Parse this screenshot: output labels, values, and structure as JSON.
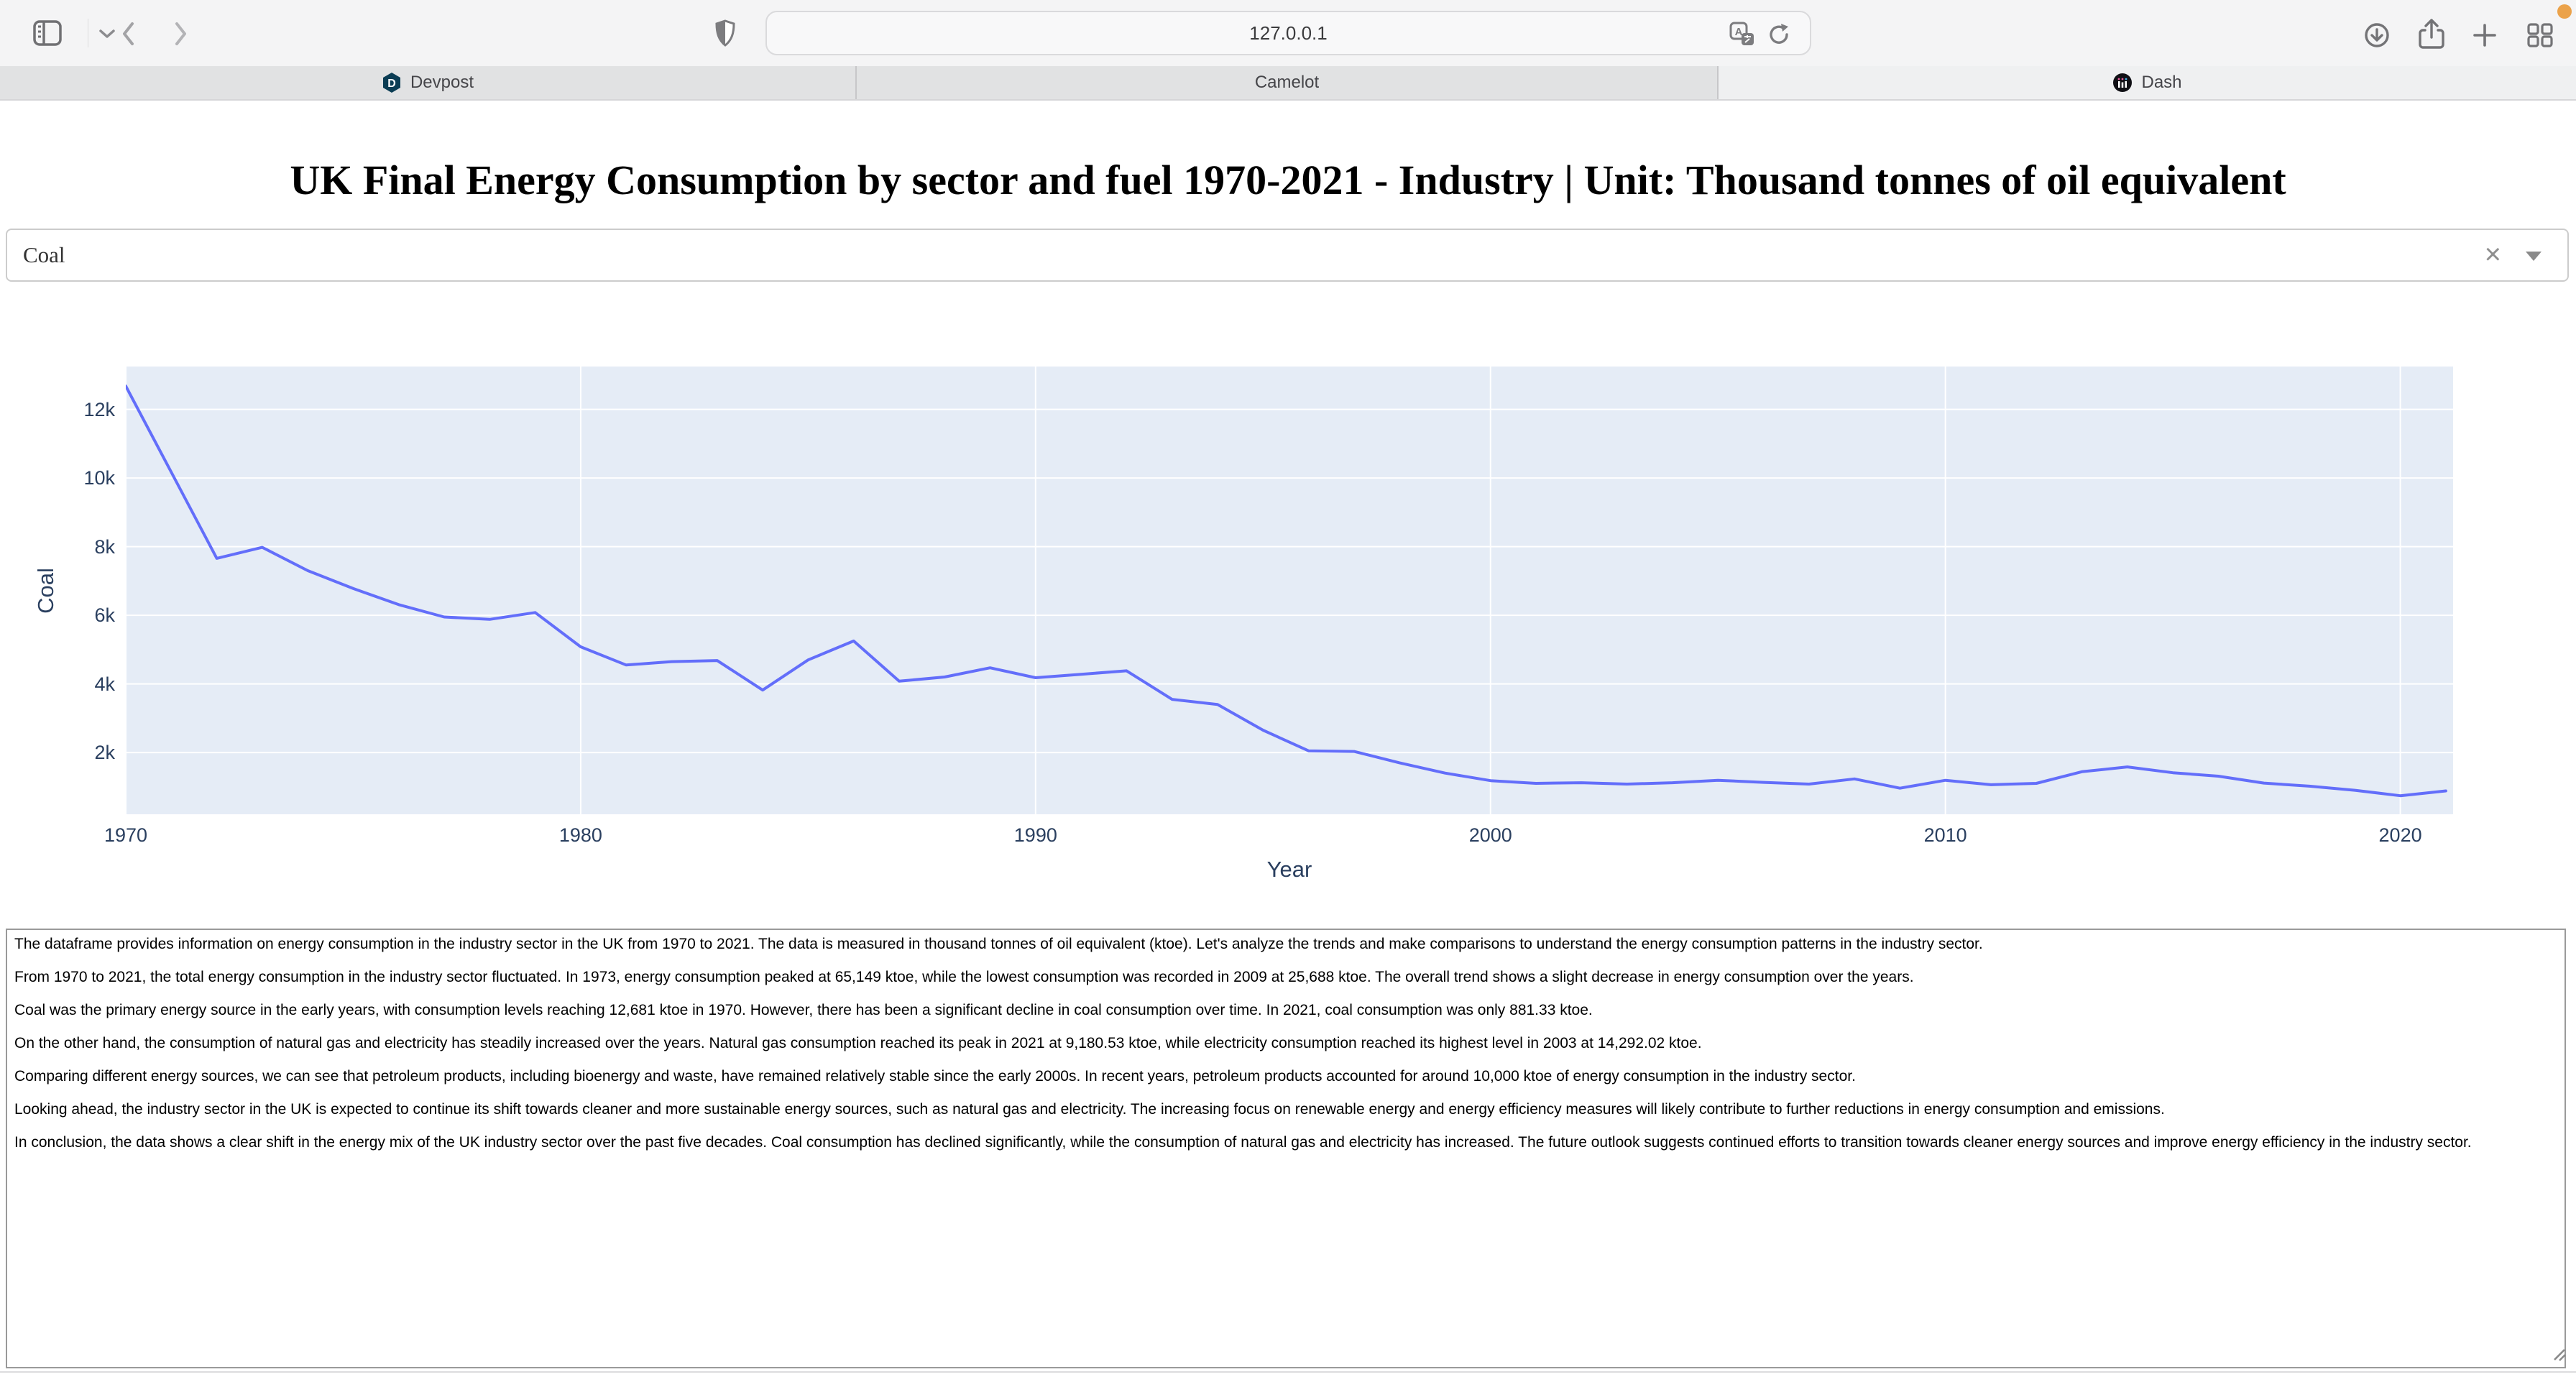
{
  "browser": {
    "url": "127.0.0.1",
    "tabs": [
      {
        "label": "Devpost"
      },
      {
        "label": "Camelot"
      },
      {
        "label": "Dash"
      }
    ],
    "toolbar_icons": [
      "sidebar-toggle",
      "tab-group-chevron",
      "back",
      "forward",
      "shield",
      "translate",
      "reload",
      "download",
      "share",
      "new-tab",
      "tab-overview"
    ]
  },
  "page": {
    "title": "UK Final Energy Consumption by sector and fuel 1970-2021 - Industry | Unit: Thousand tonnes of oil equivalent",
    "dropdown_value": "Coal",
    "analysis_paragraphs": [
      "The dataframe provides information on energy consumption in the industry sector in the UK from 1970 to 2021. The data is measured in thousand tonnes of oil equivalent (ktoe). Let's analyze the trends and make comparisons to understand the energy consumption patterns in the industry sector.",
      "From 1970 to 2021, the total energy consumption in the industry sector fluctuated. In 1973, energy consumption peaked at 65,149 ktoe, while the lowest consumption was recorded in 2009 at 25,688 ktoe. The overall trend shows a slight decrease in energy consumption over the years.",
      "Coal was the primary energy source in the early years, with consumption levels reaching 12,681 ktoe in 1970. However, there has been a significant decline in coal consumption over time. In 2021, coal consumption was only 881.33 ktoe.",
      "On the other hand, the consumption of natural gas and electricity has steadily increased over the years. Natural gas consumption reached its peak in 2021 at 9,180.53 ktoe, while electricity consumption reached its highest level in 2003 at 14,292.02 ktoe.",
      "Comparing different energy sources, we can see that petroleum products, including bioenergy and waste, have remained relatively stable since the early 2000s. In recent years, petroleum products accounted for around 10,000 ktoe of energy consumption in the industry sector.",
      "Looking ahead, the industry sector in the UK is expected to continue its shift towards cleaner and more sustainable energy sources, such as natural gas and electricity. The increasing focus on renewable energy and energy efficiency measures will likely contribute to further reductions in energy consumption and emissions.",
      "In conclusion, the data shows a clear shift in the energy mix of the UK industry sector over the past five decades. Coal consumption has declined significantly, while the consumption of natural gas and electricity has increased. The future outlook suggests continued efforts to transition towards cleaner energy sources and improve energy efficiency in the industry sector."
    ]
  },
  "chart_data": {
    "type": "line",
    "series_name": "Coal",
    "xlabel": "Year",
    "ylabel": "Coal",
    "x_range": [
      1970,
      2021.16
    ],
    "y_range": [
      200,
      13250
    ],
    "x_ticks": [
      1970,
      1980,
      1990,
      2000,
      2010,
      2020
    ],
    "y_ticks": [
      {
        "v": 2000,
        "label": "2k"
      },
      {
        "v": 4000,
        "label": "4k"
      },
      {
        "v": 6000,
        "label": "6k"
      },
      {
        "v": 8000,
        "label": "8k"
      },
      {
        "v": 10000,
        "label": "10k"
      },
      {
        "v": 12000,
        "label": "12k"
      }
    ],
    "line_color": "#636efa",
    "plot_bg": "#e5ecf6",
    "grid_color": "#ffffff",
    "tick_color": "#2a3f5f",
    "x": [
      1970,
      1971,
      1972,
      1973,
      1974,
      1975,
      1976,
      1977,
      1978,
      1979,
      1980,
      1981,
      1982,
      1983,
      1984,
      1985,
      1986,
      1987,
      1988,
      1989,
      1990,
      1991,
      1992,
      1993,
      1994,
      1995,
      1996,
      1997,
      1998,
      1999,
      2000,
      2001,
      2002,
      2003,
      2004,
      2005,
      2006,
      2007,
      2008,
      2009,
      2010,
      2011,
      2012,
      2013,
      2014,
      2015,
      2016,
      2017,
      2018,
      2019,
      2020,
      2021
    ],
    "y": [
      12681,
      10170,
      7660,
      7980,
      7300,
      6780,
      6310,
      5950,
      5880,
      6080,
      5080,
      4550,
      4650,
      4680,
      3820,
      4700,
      5250,
      4080,
      4200,
      4470,
      4180,
      4280,
      4380,
      3550,
      3400,
      2650,
      2050,
      2030,
      1700,
      1400,
      1180,
      1100,
      1120,
      1080,
      1120,
      1190,
      1130,
      1080,
      1230,
      960,
      1190,
      1060,
      1100,
      1440,
      1580,
      1410,
      1310,
      1110,
      1020,
      900,
      740,
      881.33
    ]
  }
}
